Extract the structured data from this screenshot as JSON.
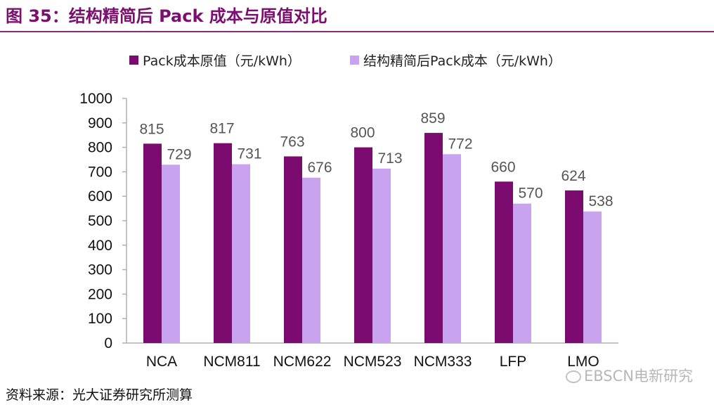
{
  "figure": {
    "title": "图 35：结构精简后 Pack 成本与原值对比",
    "source": "资料来源：光大证券研究所测算",
    "watermark": "EBSCN电新研究"
  },
  "chart_data": {
    "type": "bar",
    "categories": [
      "NCA",
      "NCM811",
      "NCM622",
      "NCM523",
      "NCM333",
      "LFP",
      "LMO"
    ],
    "series": [
      {
        "name": "Pack成本原值（元/kWh）",
        "values": [
          815,
          817,
          763,
          800,
          859,
          660,
          624
        ],
        "color": "#7b0b6e"
      },
      {
        "name": "结构精简后Pack成本（元/kWh）",
        "values": [
          729,
          731,
          676,
          713,
          772,
          570,
          538
        ],
        "color": "#c9a3f0"
      }
    ],
    "ylim": [
      0,
      1000
    ],
    "yticks": [
      0,
      100,
      200,
      300,
      400,
      500,
      600,
      700,
      800,
      900,
      1000
    ],
    "legend": "top",
    "grid": false,
    "data_labels": true
  }
}
